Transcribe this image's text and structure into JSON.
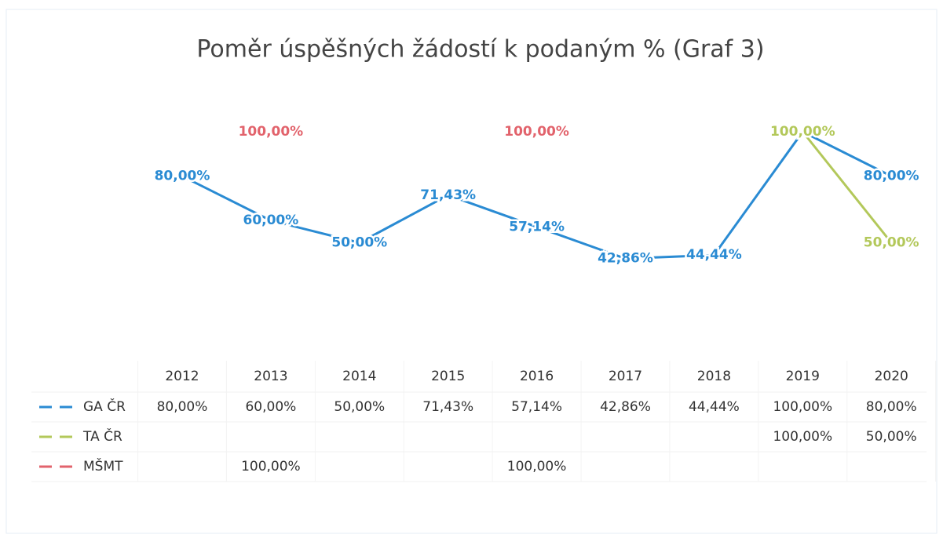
{
  "chart_data": {
    "type": "line",
    "title": "Poměr úspěšných žádostí k podaným % (Graf 3)",
    "categories": [
      "2012",
      "2013",
      "2014",
      "2015",
      "2016",
      "2017",
      "2018",
      "2019",
      "2020"
    ],
    "ylim": [
      0,
      100
    ],
    "series": [
      {
        "name": "GA ČR",
        "color": "#2a8bd3",
        "values": [
          80,
          60,
          50,
          71.43,
          57.14,
          42.86,
          44.44,
          100,
          80
        ],
        "value_labels": [
          "80,00%",
          "60,00%",
          "50,00%",
          "71,43%",
          "57,14%",
          "42,86%",
          "44,44%",
          "100,00%",
          "80,00%"
        ]
      },
      {
        "name": "TA ČR",
        "color": "#b3c85a",
        "values": [
          null,
          null,
          null,
          null,
          null,
          null,
          null,
          100,
          50
        ],
        "value_labels": [
          null,
          null,
          null,
          null,
          null,
          null,
          null,
          "100,00%",
          "50,00%"
        ]
      },
      {
        "name": "MŠMT",
        "color": "#e2636c",
        "values": [
          null,
          100,
          null,
          null,
          100,
          null,
          null,
          null,
          null
        ],
        "value_labels": [
          null,
          "100,00%",
          null,
          null,
          "100,00%",
          null,
          null,
          null,
          null
        ]
      }
    ]
  }
}
